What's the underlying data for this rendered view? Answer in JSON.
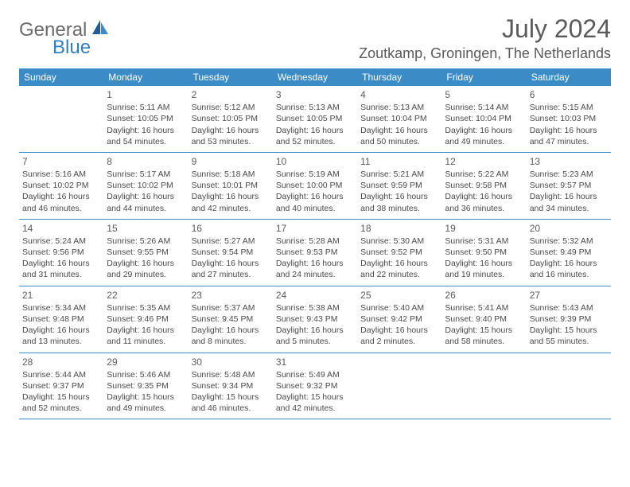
{
  "logo": {
    "text1": "General",
    "text2": "Blue"
  },
  "title": "July 2024",
  "location": "Zoutkamp, Groningen, The Netherlands",
  "colors": {
    "header_bg": "#3b8bc7",
    "header_text": "#ffffff",
    "body_text": "#4a4a4a",
    "title_text": "#5a5a5a"
  },
  "dayNames": [
    "Sunday",
    "Monday",
    "Tuesday",
    "Wednesday",
    "Thursday",
    "Friday",
    "Saturday"
  ],
  "weeks": [
    [
      {
        "n": "",
        "sr": "",
        "ss": "",
        "dl": ""
      },
      {
        "n": "1",
        "sr": "Sunrise: 5:11 AM",
        "ss": "Sunset: 10:05 PM",
        "dl": "Daylight: 16 hours and 54 minutes."
      },
      {
        "n": "2",
        "sr": "Sunrise: 5:12 AM",
        "ss": "Sunset: 10:05 PM",
        "dl": "Daylight: 16 hours and 53 minutes."
      },
      {
        "n": "3",
        "sr": "Sunrise: 5:13 AM",
        "ss": "Sunset: 10:05 PM",
        "dl": "Daylight: 16 hours and 52 minutes."
      },
      {
        "n": "4",
        "sr": "Sunrise: 5:13 AM",
        "ss": "Sunset: 10:04 PM",
        "dl": "Daylight: 16 hours and 50 minutes."
      },
      {
        "n": "5",
        "sr": "Sunrise: 5:14 AM",
        "ss": "Sunset: 10:04 PM",
        "dl": "Daylight: 16 hours and 49 minutes."
      },
      {
        "n": "6",
        "sr": "Sunrise: 5:15 AM",
        "ss": "Sunset: 10:03 PM",
        "dl": "Daylight: 16 hours and 47 minutes."
      }
    ],
    [
      {
        "n": "7",
        "sr": "Sunrise: 5:16 AM",
        "ss": "Sunset: 10:02 PM",
        "dl": "Daylight: 16 hours and 46 minutes."
      },
      {
        "n": "8",
        "sr": "Sunrise: 5:17 AM",
        "ss": "Sunset: 10:02 PM",
        "dl": "Daylight: 16 hours and 44 minutes."
      },
      {
        "n": "9",
        "sr": "Sunrise: 5:18 AM",
        "ss": "Sunset: 10:01 PM",
        "dl": "Daylight: 16 hours and 42 minutes."
      },
      {
        "n": "10",
        "sr": "Sunrise: 5:19 AM",
        "ss": "Sunset: 10:00 PM",
        "dl": "Daylight: 16 hours and 40 minutes."
      },
      {
        "n": "11",
        "sr": "Sunrise: 5:21 AM",
        "ss": "Sunset: 9:59 PM",
        "dl": "Daylight: 16 hours and 38 minutes."
      },
      {
        "n": "12",
        "sr": "Sunrise: 5:22 AM",
        "ss": "Sunset: 9:58 PM",
        "dl": "Daylight: 16 hours and 36 minutes."
      },
      {
        "n": "13",
        "sr": "Sunrise: 5:23 AM",
        "ss": "Sunset: 9:57 PM",
        "dl": "Daylight: 16 hours and 34 minutes."
      }
    ],
    [
      {
        "n": "14",
        "sr": "Sunrise: 5:24 AM",
        "ss": "Sunset: 9:56 PM",
        "dl": "Daylight: 16 hours and 31 minutes."
      },
      {
        "n": "15",
        "sr": "Sunrise: 5:26 AM",
        "ss": "Sunset: 9:55 PM",
        "dl": "Daylight: 16 hours and 29 minutes."
      },
      {
        "n": "16",
        "sr": "Sunrise: 5:27 AM",
        "ss": "Sunset: 9:54 PM",
        "dl": "Daylight: 16 hours and 27 minutes."
      },
      {
        "n": "17",
        "sr": "Sunrise: 5:28 AM",
        "ss": "Sunset: 9:53 PM",
        "dl": "Daylight: 16 hours and 24 minutes."
      },
      {
        "n": "18",
        "sr": "Sunrise: 5:30 AM",
        "ss": "Sunset: 9:52 PM",
        "dl": "Daylight: 16 hours and 22 minutes."
      },
      {
        "n": "19",
        "sr": "Sunrise: 5:31 AM",
        "ss": "Sunset: 9:50 PM",
        "dl": "Daylight: 16 hours and 19 minutes."
      },
      {
        "n": "20",
        "sr": "Sunrise: 5:32 AM",
        "ss": "Sunset: 9:49 PM",
        "dl": "Daylight: 16 hours and 16 minutes."
      }
    ],
    [
      {
        "n": "21",
        "sr": "Sunrise: 5:34 AM",
        "ss": "Sunset: 9:48 PM",
        "dl": "Daylight: 16 hours and 13 minutes."
      },
      {
        "n": "22",
        "sr": "Sunrise: 5:35 AM",
        "ss": "Sunset: 9:46 PM",
        "dl": "Daylight: 16 hours and 11 minutes."
      },
      {
        "n": "23",
        "sr": "Sunrise: 5:37 AM",
        "ss": "Sunset: 9:45 PM",
        "dl": "Daylight: 16 hours and 8 minutes."
      },
      {
        "n": "24",
        "sr": "Sunrise: 5:38 AM",
        "ss": "Sunset: 9:43 PM",
        "dl": "Daylight: 16 hours and 5 minutes."
      },
      {
        "n": "25",
        "sr": "Sunrise: 5:40 AM",
        "ss": "Sunset: 9:42 PM",
        "dl": "Daylight: 16 hours and 2 minutes."
      },
      {
        "n": "26",
        "sr": "Sunrise: 5:41 AM",
        "ss": "Sunset: 9:40 PM",
        "dl": "Daylight: 15 hours and 58 minutes."
      },
      {
        "n": "27",
        "sr": "Sunrise: 5:43 AM",
        "ss": "Sunset: 9:39 PM",
        "dl": "Daylight: 15 hours and 55 minutes."
      }
    ],
    [
      {
        "n": "28",
        "sr": "Sunrise: 5:44 AM",
        "ss": "Sunset: 9:37 PM",
        "dl": "Daylight: 15 hours and 52 minutes."
      },
      {
        "n": "29",
        "sr": "Sunrise: 5:46 AM",
        "ss": "Sunset: 9:35 PM",
        "dl": "Daylight: 15 hours and 49 minutes."
      },
      {
        "n": "30",
        "sr": "Sunrise: 5:48 AM",
        "ss": "Sunset: 9:34 PM",
        "dl": "Daylight: 15 hours and 46 minutes."
      },
      {
        "n": "31",
        "sr": "Sunrise: 5:49 AM",
        "ss": "Sunset: 9:32 PM",
        "dl": "Daylight: 15 hours and 42 minutes."
      },
      {
        "n": "",
        "sr": "",
        "ss": "",
        "dl": ""
      },
      {
        "n": "",
        "sr": "",
        "ss": "",
        "dl": ""
      },
      {
        "n": "",
        "sr": "",
        "ss": "",
        "dl": ""
      }
    ]
  ]
}
